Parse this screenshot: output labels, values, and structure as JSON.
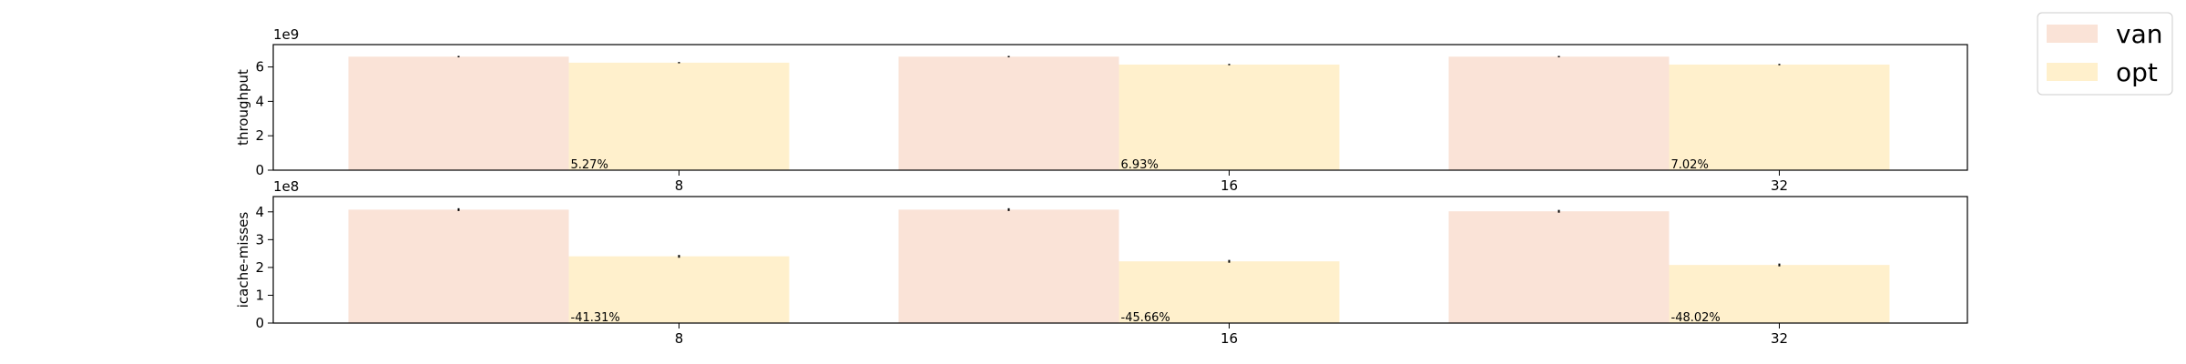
{
  "chart_data": [
    {
      "type": "bar",
      "y_label": "throughput",
      "y_offset_label": "1e9",
      "categories": [
        "8",
        "16",
        "32"
      ],
      "series": [
        {
          "name": "van",
          "color": "#fae3d7",
          "values": [
            6.6,
            6.6,
            6.6
          ],
          "errors": [
            0.04,
            0.04,
            0.04
          ]
        },
        {
          "name": "opt",
          "color": "#fff0cc",
          "values": [
            6.25,
            6.14,
            6.14
          ],
          "errors": [
            0.04,
            0.04,
            0.04
          ]
        }
      ],
      "annotations": [
        "5.27%",
        "6.93%",
        "7.02%"
      ],
      "ylim": [
        0,
        7.3
      ],
      "yticks": [
        0,
        2,
        4,
        6
      ],
      "legend": "outside upper right"
    },
    {
      "type": "bar",
      "y_label": "icache-misses",
      "y_offset_label": "1e8",
      "categories": [
        "8",
        "16",
        "32"
      ],
      "series": [
        {
          "name": "van",
          "color": "#fae3d7",
          "values": [
            4.08,
            4.08,
            4.02
          ],
          "errors": [
            0.05,
            0.05,
            0.05
          ]
        },
        {
          "name": "opt",
          "color": "#fff0cc",
          "values": [
            2.4,
            2.22,
            2.09
          ],
          "errors": [
            0.05,
            0.05,
            0.05
          ]
        }
      ],
      "annotations": [
        "-41.31%",
        "-45.66%",
        "-48.02%"
      ],
      "ylim": [
        0,
        4.55
      ],
      "yticks": [
        0,
        1,
        2,
        3,
        4
      ]
    }
  ]
}
